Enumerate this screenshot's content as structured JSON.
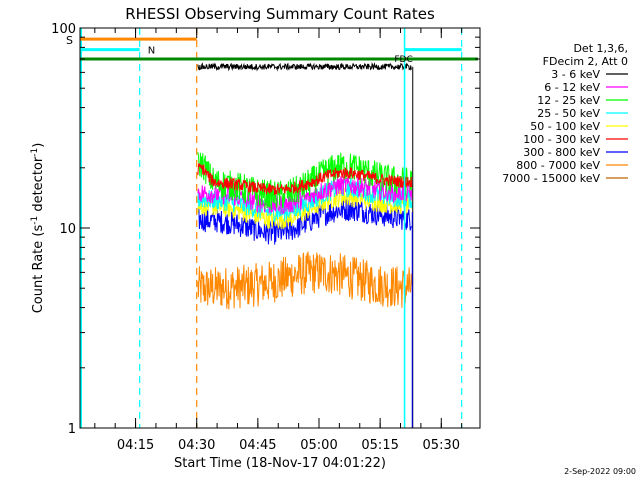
{
  "chart_data": {
    "type": "line",
    "title": "RHESSI Observing Summary Count Rates",
    "xlabel": "Start Time (18-Nov-17 04:01:22)",
    "ylabel": "Count Rate (s",
    "ylabel_sup": "-1",
    "ylabel_tail": " detector",
    "ylabel_sup2": "-1",
    "ylabel_close": ")",
    "y_scale": "log",
    "ylim": [
      1,
      100
    ],
    "xlim": [
      "04:01:22",
      "05:39:30"
    ],
    "y_ticks": [
      "1",
      "10",
      "100"
    ],
    "x_ticks": [
      "04:15",
      "04:30",
      "04:45",
      "05:00",
      "05:15",
      "05:30"
    ],
    "grid": false,
    "legend_position": "top-right",
    "legend_header": [
      "Det 1,3,6,",
      "FDecim 2, Att 0"
    ],
    "series": [
      {
        "name": "3 - 6 keV",
        "color": "#000000",
        "level": "~65"
      },
      {
        "name": "6 - 12 keV",
        "color": "#ff00ff",
        "level": "~14"
      },
      {
        "name": "12 - 25 keV",
        "color": "#00ff00",
        "level": "~17"
      },
      {
        "name": "25 - 50 keV",
        "color": "#00ffff",
        "level": "~13"
      },
      {
        "name": "50 - 100 keV",
        "color": "#ffff00",
        "level": "~12"
      },
      {
        "name": "100 - 300 keV",
        "color": "#ff0000",
        "level": "~16"
      },
      {
        "name": "300 - 800 keV",
        "color": "#0000ff",
        "level": "~10"
      },
      {
        "name": "800 - 7000 keV",
        "color": "#ff8800",
        "level": "~5"
      },
      {
        "name": "7000 - 15000 keV",
        "color": "#bb6600",
        "level": "n/a"
      }
    ],
    "annotations": {
      "saa_label": "S",
      "night_label": "N",
      "fdec_label": "FDC"
    },
    "data_window": {
      "start": "04:30",
      "end": "05:23"
    },
    "colors": {
      "saa": "#ff8800",
      "night": "#00ffff",
      "fdec": "#008800",
      "black": "#000000"
    }
  },
  "footer": {
    "date_stamp": "2-Sep-2022 09:00"
  }
}
